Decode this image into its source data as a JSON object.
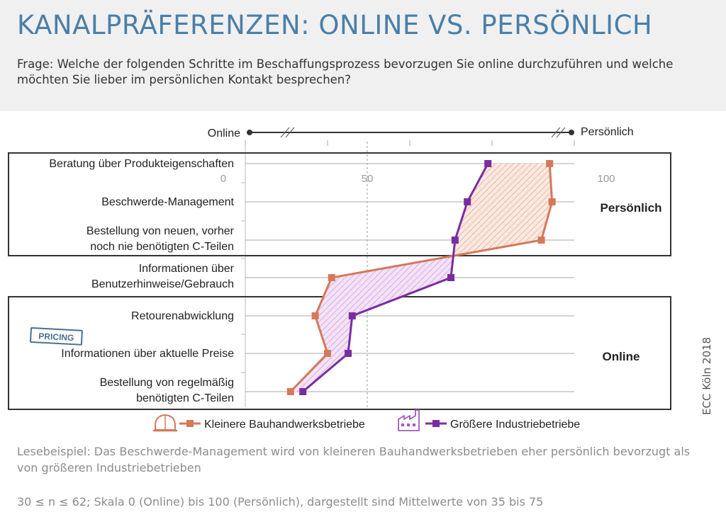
{
  "header": {
    "title": "KANALPRÄFERENZEN: ONLINE VS. PERSÖNLICH",
    "question": "Frage: Welche der folgenden Schritte im Beschaffungsprozess bevorzugen Sie online durchzuführen und welche möchten Sie lieber im persönlichen Kontakt besprechen?"
  },
  "scale": {
    "left_label": "Online",
    "right_label": "Persönlich",
    "ticks": [
      "0",
      "50",
      "100"
    ]
  },
  "groups": {
    "top_label": "Persönlich",
    "bottom_label": "Online"
  },
  "badge": "PRICING",
  "chart_data": {
    "type": "line",
    "orientation": "horizontal",
    "categories": [
      "Beratung über Produkteigenschaften",
      "Beschwerde-Management",
      "Bestellung von neuen, vorher noch nie benötigten C-Teilen",
      "Informationen über Benutzerhinweise/Gebrauch",
      "Retourenabwicklung",
      "Informationen über aktuelle Preise",
      "Bestellung von regelmäßig benötigten C-Teilen"
    ],
    "series": [
      {
        "name": "Kleinere Bauhandwerksbetriebe",
        "color": "#d4795a",
        "values": [
          72,
          72.3,
          71,
          45.5,
          43.5,
          45,
          40.5
        ]
      },
      {
        "name": "Größere Industriebetriebe",
        "color": "#7a2da0",
        "values": [
          64.5,
          62,
          60.5,
          60,
          48,
          47.5,
          42
        ]
      }
    ],
    "xlim": [
      35,
      75
    ],
    "grid": true,
    "legend": "bottom"
  },
  "legend_icons": [
    "hard-hat-icon",
    "factory-icon"
  ],
  "notes": {
    "example": "Lesebeispiel: Das Beschwerde-Management wird von kleineren Bauhandwerksbetrieben eher persönlich bevorzugt als von größeren Industriebetrieben",
    "method": "30 ≤ n ≤ 62; Skala 0 (Online) bis 100 (Persönlich), dargestellt sind Mittelwerte von 35 bis 75"
  },
  "credit": "ECC Köln 2018"
}
